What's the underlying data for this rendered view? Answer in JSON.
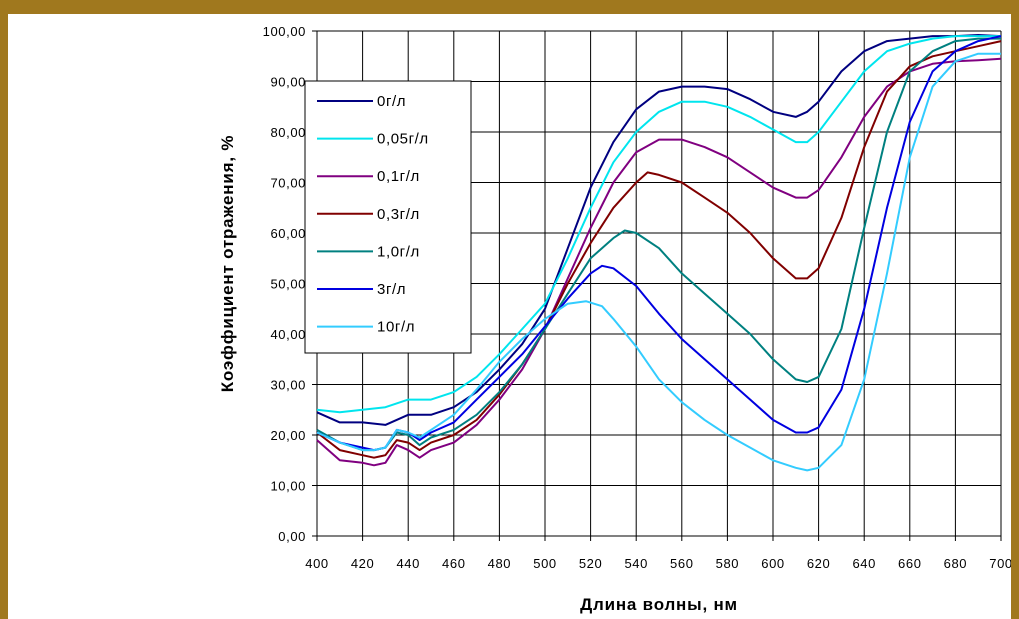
{
  "chart_data": {
    "type": "line",
    "xlabel": "Длина волны, нм",
    "ylabel": "Коэффициент отражения, %",
    "xlim": [
      400,
      700
    ],
    "ylim": [
      0,
      100
    ],
    "x_ticks": [
      "400",
      "420",
      "440",
      "460",
      "480",
      "500",
      "520",
      "540",
      "560",
      "580",
      "600",
      "620",
      "640",
      "660",
      "680",
      "700"
    ],
    "y_ticks": [
      "0,00",
      "10,00",
      "20,00",
      "30,00",
      "40,00",
      "50,00",
      "60,00",
      "70,00",
      "80,00",
      "90,00",
      "100,00"
    ],
    "grid": true,
    "legend_position": "top-left",
    "series": [
      {
        "name": "0г/л",
        "color": "#000080",
        "points": [
          [
            400,
            24.5
          ],
          [
            410,
            22.5
          ],
          [
            420,
            22.5
          ],
          [
            430,
            22
          ],
          [
            440,
            24
          ],
          [
            450,
            24
          ],
          [
            460,
            25.5
          ],
          [
            470,
            28.5
          ],
          [
            480,
            33
          ],
          [
            490,
            38
          ],
          [
            500,
            45
          ],
          [
            510,
            57
          ],
          [
            520,
            69
          ],
          [
            530,
            78
          ],
          [
            540,
            84.5
          ],
          [
            550,
            88
          ],
          [
            560,
            89
          ],
          [
            570,
            89
          ],
          [
            580,
            88.5
          ],
          [
            590,
            86.5
          ],
          [
            600,
            84
          ],
          [
            610,
            83
          ],
          [
            615,
            84
          ],
          [
            620,
            86
          ],
          [
            630,
            92
          ],
          [
            640,
            96
          ],
          [
            650,
            98
          ],
          [
            660,
            98.5
          ],
          [
            670,
            99
          ],
          [
            680,
            99
          ],
          [
            690,
            99.2
          ],
          [
            700,
            99
          ]
        ]
      },
      {
        "name": "0,05г/л",
        "color": "#00e5ee",
        "points": [
          [
            400,
            25
          ],
          [
            410,
            24.5
          ],
          [
            420,
            25
          ],
          [
            430,
            25.5
          ],
          [
            440,
            27
          ],
          [
            450,
            27
          ],
          [
            460,
            28.5
          ],
          [
            470,
            31.5
          ],
          [
            480,
            36
          ],
          [
            490,
            41
          ],
          [
            500,
            46
          ],
          [
            510,
            55
          ],
          [
            520,
            65
          ],
          [
            530,
            74
          ],
          [
            540,
            80
          ],
          [
            550,
            84
          ],
          [
            560,
            86
          ],
          [
            570,
            86
          ],
          [
            580,
            85
          ],
          [
            590,
            83
          ],
          [
            600,
            80.5
          ],
          [
            610,
            78
          ],
          [
            615,
            78
          ],
          [
            620,
            80
          ],
          [
            630,
            86
          ],
          [
            640,
            92
          ],
          [
            650,
            96
          ],
          [
            660,
            97.5
          ],
          [
            670,
            98.5
          ],
          [
            680,
            99
          ],
          [
            690,
            99
          ],
          [
            700,
            99
          ]
        ]
      },
      {
        "name": "0,1г/л",
        "color": "#800080",
        "points": [
          [
            400,
            19
          ],
          [
            410,
            15
          ],
          [
            420,
            14.5
          ],
          [
            425,
            14
          ],
          [
            430,
            14.5
          ],
          [
            435,
            18
          ],
          [
            440,
            17
          ],
          [
            445,
            15.5
          ],
          [
            450,
            17
          ],
          [
            460,
            18.5
          ],
          [
            470,
            22
          ],
          [
            480,
            27
          ],
          [
            490,
            33
          ],
          [
            500,
            41
          ],
          [
            510,
            51
          ],
          [
            520,
            61
          ],
          [
            530,
            70
          ],
          [
            540,
            76
          ],
          [
            550,
            78.5
          ],
          [
            560,
            78.5
          ],
          [
            570,
            77
          ],
          [
            580,
            75
          ],
          [
            590,
            72
          ],
          [
            600,
            69
          ],
          [
            610,
            67
          ],
          [
            615,
            67
          ],
          [
            620,
            68.5
          ],
          [
            630,
            75
          ],
          [
            640,
            83
          ],
          [
            650,
            89
          ],
          [
            660,
            92
          ],
          [
            670,
            93.5
          ],
          [
            680,
            94
          ],
          [
            690,
            94.2
          ],
          [
            700,
            94.5
          ]
        ]
      },
      {
        "name": "0,3г/л",
        "color": "#800000",
        "points": [
          [
            400,
            20.5
          ],
          [
            410,
            17
          ],
          [
            420,
            16
          ],
          [
            425,
            15.5
          ],
          [
            430,
            16
          ],
          [
            435,
            19
          ],
          [
            440,
            18.5
          ],
          [
            445,
            17
          ],
          [
            450,
            18.5
          ],
          [
            460,
            20
          ],
          [
            470,
            23
          ],
          [
            480,
            28
          ],
          [
            490,
            34
          ],
          [
            500,
            41
          ],
          [
            510,
            50
          ],
          [
            520,
            58
          ],
          [
            530,
            65
          ],
          [
            540,
            70
          ],
          [
            545,
            72
          ],
          [
            550,
            71.5
          ],
          [
            560,
            70
          ],
          [
            570,
            67
          ],
          [
            580,
            64
          ],
          [
            590,
            60
          ],
          [
            600,
            55
          ],
          [
            610,
            51
          ],
          [
            615,
            51
          ],
          [
            620,
            53
          ],
          [
            630,
            63
          ],
          [
            640,
            77
          ],
          [
            650,
            88
          ],
          [
            660,
            93
          ],
          [
            670,
            95
          ],
          [
            680,
            96
          ],
          [
            690,
            97
          ],
          [
            700,
            98
          ]
        ]
      },
      {
        "name": "1,0г/л",
        "color": "#008080",
        "points": [
          [
            400,
            21
          ],
          [
            410,
            18.5
          ],
          [
            420,
            17
          ],
          [
            425,
            17
          ],
          [
            430,
            17.5
          ],
          [
            435,
            20.5
          ],
          [
            440,
            20
          ],
          [
            445,
            18
          ],
          [
            450,
            19.5
          ],
          [
            460,
            21
          ],
          [
            470,
            24
          ],
          [
            480,
            28.5
          ],
          [
            490,
            34
          ],
          [
            500,
            41
          ],
          [
            510,
            48
          ],
          [
            520,
            55
          ],
          [
            530,
            59
          ],
          [
            535,
            60.5
          ],
          [
            540,
            60
          ],
          [
            550,
            57
          ],
          [
            560,
            52
          ],
          [
            570,
            48
          ],
          [
            580,
            44
          ],
          [
            590,
            40
          ],
          [
            600,
            35
          ],
          [
            610,
            31
          ],
          [
            615,
            30.5
          ],
          [
            620,
            31.5
          ],
          [
            630,
            41
          ],
          [
            640,
            61
          ],
          [
            650,
            80
          ],
          [
            660,
            92
          ],
          [
            670,
            96
          ],
          [
            680,
            98
          ],
          [
            690,
            98.5
          ],
          [
            700,
            98.5
          ]
        ]
      },
      {
        "name": "3г/л",
        "color": "#0000e0",
        "points": [
          [
            400,
            20.5
          ],
          [
            410,
            18.5
          ],
          [
            420,
            17.5
          ],
          [
            425,
            17
          ],
          [
            430,
            17.5
          ],
          [
            435,
            21
          ],
          [
            440,
            20.5
          ],
          [
            445,
            19
          ],
          [
            450,
            20.5
          ],
          [
            460,
            22.5
          ],
          [
            470,
            27
          ],
          [
            480,
            31.5
          ],
          [
            490,
            36
          ],
          [
            500,
            41.5
          ],
          [
            510,
            47
          ],
          [
            520,
            52
          ],
          [
            525,
            53.5
          ],
          [
            530,
            53
          ],
          [
            540,
            49.5
          ],
          [
            550,
            44
          ],
          [
            560,
            39
          ],
          [
            570,
            35
          ],
          [
            580,
            31
          ],
          [
            590,
            27
          ],
          [
            600,
            23
          ],
          [
            610,
            20.5
          ],
          [
            615,
            20.5
          ],
          [
            620,
            21.5
          ],
          [
            630,
            29
          ],
          [
            640,
            45
          ],
          [
            650,
            65
          ],
          [
            660,
            82
          ],
          [
            670,
            92
          ],
          [
            680,
            96
          ],
          [
            690,
            98
          ],
          [
            700,
            99
          ]
        ]
      },
      {
        "name": "10г/л",
        "color": "#33ccff",
        "points": [
          [
            400,
            20.5
          ],
          [
            410,
            18.5
          ],
          [
            420,
            17
          ],
          [
            425,
            17
          ],
          [
            430,
            17.5
          ],
          [
            435,
            21
          ],
          [
            440,
            20.5
          ],
          [
            445,
            19.5
          ],
          [
            450,
            21
          ],
          [
            460,
            24
          ],
          [
            470,
            29
          ],
          [
            480,
            34.5
          ],
          [
            490,
            39
          ],
          [
            500,
            43
          ],
          [
            510,
            46
          ],
          [
            518,
            46.5
          ],
          [
            525,
            45.5
          ],
          [
            530,
            43
          ],
          [
            540,
            37.5
          ],
          [
            550,
            31
          ],
          [
            560,
            26.5
          ],
          [
            570,
            23
          ],
          [
            580,
            20
          ],
          [
            590,
            17.5
          ],
          [
            600,
            15
          ],
          [
            610,
            13.5
          ],
          [
            615,
            13
          ],
          [
            620,
            13.5
          ],
          [
            630,
            18
          ],
          [
            640,
            31
          ],
          [
            650,
            52
          ],
          [
            660,
            75
          ],
          [
            670,
            89
          ],
          [
            680,
            94
          ],
          [
            690,
            95.5
          ],
          [
            700,
            95.5
          ]
        ]
      }
    ]
  }
}
